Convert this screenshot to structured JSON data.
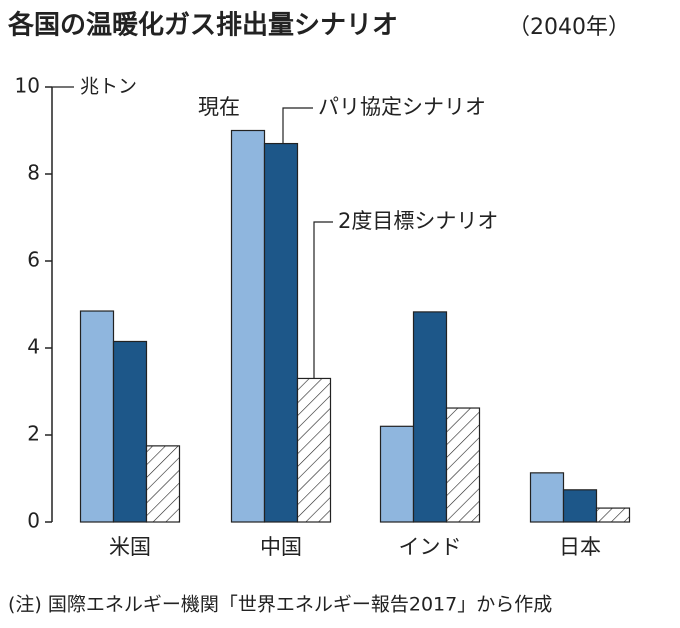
{
  "chart_data": {
    "type": "bar",
    "title": "各国の温暖化ガス排出量シナリオ",
    "subtitle": "（2040年）",
    "y_unit": "兆トン",
    "categories": [
      "米国",
      "中国",
      "インド",
      "日本"
    ],
    "series": [
      {
        "name": "現在",
        "color": "#8fb6de",
        "values": [
          4.85,
          9.0,
          2.2,
          1.13
        ]
      },
      {
        "name": "パリ協定シナリオ",
        "color": "#1d5789",
        "values": [
          4.15,
          8.7,
          4.83,
          0.74
        ]
      },
      {
        "name": "2度目標シナリオ",
        "color": "#ffffff",
        "hatch": true,
        "values": [
          1.75,
          3.3,
          2.62,
          0.32
        ]
      }
    ],
    "ylim": [
      0,
      10
    ],
    "yticks": [
      0,
      2,
      4,
      6,
      8,
      10
    ],
    "note": "(注) 国際エネルギー機関「世界エネルギー報告2017」から作成"
  }
}
